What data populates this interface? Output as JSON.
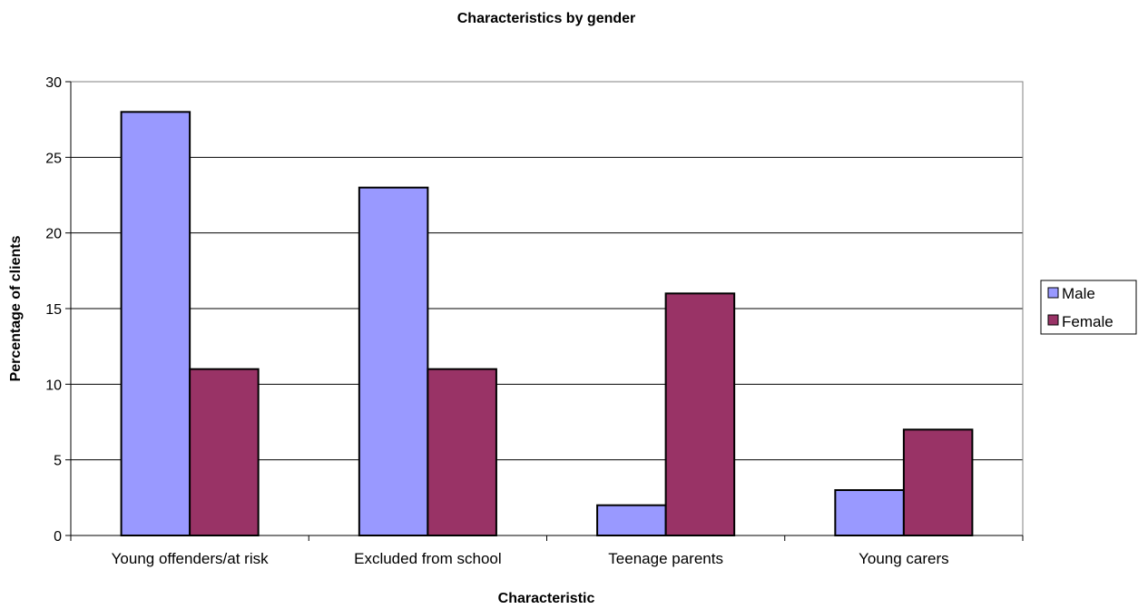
{
  "chart_data": {
    "type": "bar",
    "title": "Characteristics by gender",
    "xlabel": "Characteristic",
    "ylabel": "Percentage of clients",
    "categories": [
      "Young offenders/at risk",
      "Excluded from school",
      "Teenage parents",
      "Young carers"
    ],
    "series": [
      {
        "name": "Male",
        "values": [
          28,
          23,
          2,
          3
        ],
        "color": "#9999ff"
      },
      {
        "name": "Female",
        "values": [
          11,
          11,
          16,
          7
        ],
        "color": "#993366"
      }
    ],
    "ylim": [
      0,
      30
    ],
    "yticks": [
      0,
      5,
      10,
      15,
      20,
      25,
      30
    ],
    "grid": true,
    "legend_position": "right"
  }
}
